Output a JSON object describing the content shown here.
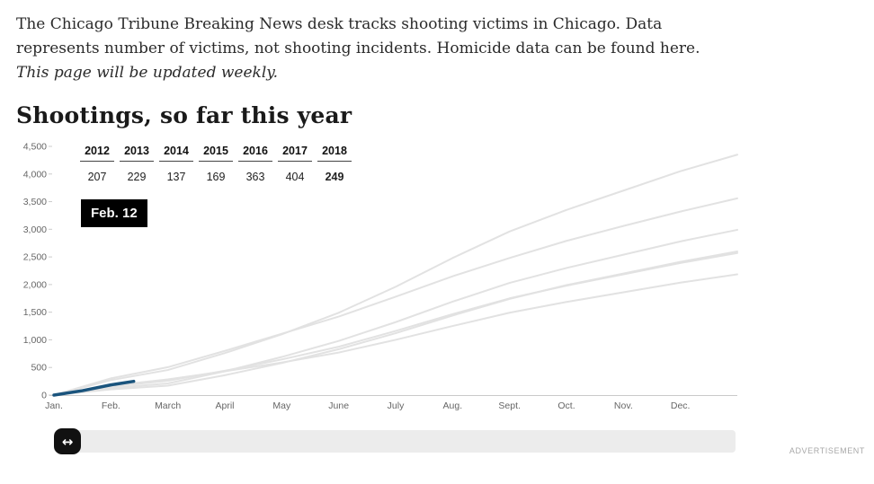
{
  "intro": {
    "text_main": "The Chicago Tribune Breaking News desk tracks shooting victims in Chicago. Data represents number of victims, not shooting incidents. Homicide data can be found ",
    "link_text": "here",
    "text_after_link": ". ",
    "text_italic": "This page will be updated weekly."
  },
  "heading": "Shootings, so far this year",
  "legend": {
    "columns": [
      {
        "year": "2012",
        "value": "207",
        "bold": false
      },
      {
        "year": "2013",
        "value": "229",
        "bold": false
      },
      {
        "year": "2014",
        "value": "137",
        "bold": false
      },
      {
        "year": "2015",
        "value": "169",
        "bold": false
      },
      {
        "year": "2016",
        "value": "363",
        "bold": false
      },
      {
        "year": "2017",
        "value": "404",
        "bold": false
      },
      {
        "year": "2018",
        "value": "249",
        "bold": true
      }
    ]
  },
  "tooltip": {
    "label": "Feb. 12"
  },
  "slider": {
    "icon": "↔"
  },
  "advertisement_label": "ADVERTISEMENT",
  "chart_data": {
    "type": "line",
    "title": "Shootings, so far this year",
    "subtitle": "Cumulative shooting victims in Chicago by day of year",
    "highlight_date": "Feb. 12",
    "values_at_highlight_date": {
      "2012": 207,
      "2013": 229,
      "2014": 137,
      "2015": 169,
      "2016": 363,
      "2017": 404,
      "2018": 249
    },
    "x_axis": {
      "tick_labels": [
        "Jan.",
        "Feb.",
        "March",
        "April",
        "May",
        "June",
        "July",
        "Aug.",
        "Sept.",
        "Oct.",
        "Nov.",
        "Dec."
      ],
      "range_months": [
        0,
        12
      ]
    },
    "y_axis": {
      "ticks": [
        0,
        500,
        1000,
        1500,
        2000,
        2500,
        3000,
        3500,
        4000,
        4500
      ],
      "tick_labels": [
        "0",
        "500",
        "1,000",
        "1,500",
        "2,000",
        "2,500",
        "3,000",
        "3,500",
        "4,000",
        "4,500"
      ],
      "range": [
        0,
        4500
      ]
    },
    "legend_position": "top-left",
    "grid": false,
    "past_year_color": "#e2e2e2",
    "current_year_color": "#1a547d",
    "series": [
      {
        "name": "2012",
        "color": "#e2e2e2",
        "current": false,
        "x": [
          0,
          1,
          2,
          3,
          4,
          5,
          6,
          7,
          8,
          9,
          10,
          11,
          12
        ],
        "values": [
          0,
          155,
          260,
          440,
          645,
          875,
          1160,
          1465,
          1750,
          1980,
          2185,
          2390,
          2570
        ]
      },
      {
        "name": "2013",
        "color": "#e2e2e2",
        "current": false,
        "x": [
          0,
          1,
          2,
          3,
          4,
          5,
          6,
          7,
          8,
          9,
          10,
          11,
          12
        ],
        "values": [
          0,
          170,
          285,
          430,
          590,
          770,
          1000,
          1250,
          1490,
          1685,
          1860,
          2035,
          2185
        ]
      },
      {
        "name": "2014",
        "color": "#e2e2e2",
        "current": false,
        "x": [
          0,
          1,
          2,
          3,
          4,
          5,
          6,
          7,
          8,
          9,
          10,
          11,
          12
        ],
        "values": [
          0,
          103,
          171,
          360,
          580,
          830,
          1120,
          1440,
          1740,
          1990,
          2200,
          2410,
          2599
        ]
      },
      {
        "name": "2015",
        "color": "#e2e2e2",
        "current": false,
        "x": [
          0,
          1,
          2,
          3,
          4,
          5,
          6,
          7,
          8,
          9,
          10,
          11,
          12
        ],
        "values": [
          0,
          127,
          211,
          430,
          690,
          980,
          1320,
          1690,
          2030,
          2300,
          2540,
          2780,
          2990
        ]
      },
      {
        "name": "2016",
        "color": "#e2e2e2",
        "current": false,
        "x": [
          0,
          1,
          2,
          3,
          4,
          5,
          6,
          7,
          8,
          9,
          10,
          11,
          12
        ],
        "values": [
          0,
          272,
          454,
          760,
          1100,
          1490,
          1960,
          2480,
          2960,
          3350,
          3700,
          4050,
          4350
        ]
      },
      {
        "name": "2017",
        "color": "#e2e2e2",
        "current": false,
        "x": [
          0,
          1,
          2,
          3,
          4,
          5,
          6,
          7,
          8,
          9,
          10,
          11,
          12
        ],
        "values": [
          0,
          303,
          505,
          800,
          1110,
          1420,
          1780,
          2150,
          2480,
          2790,
          3060,
          3320,
          3560
        ]
      },
      {
        "name": "2018",
        "color": "#1a547d",
        "current": true,
        "x": [
          0,
          0.5,
          1,
          1.4
        ],
        "values": [
          0,
          80,
          185,
          249
        ]
      }
    ]
  }
}
